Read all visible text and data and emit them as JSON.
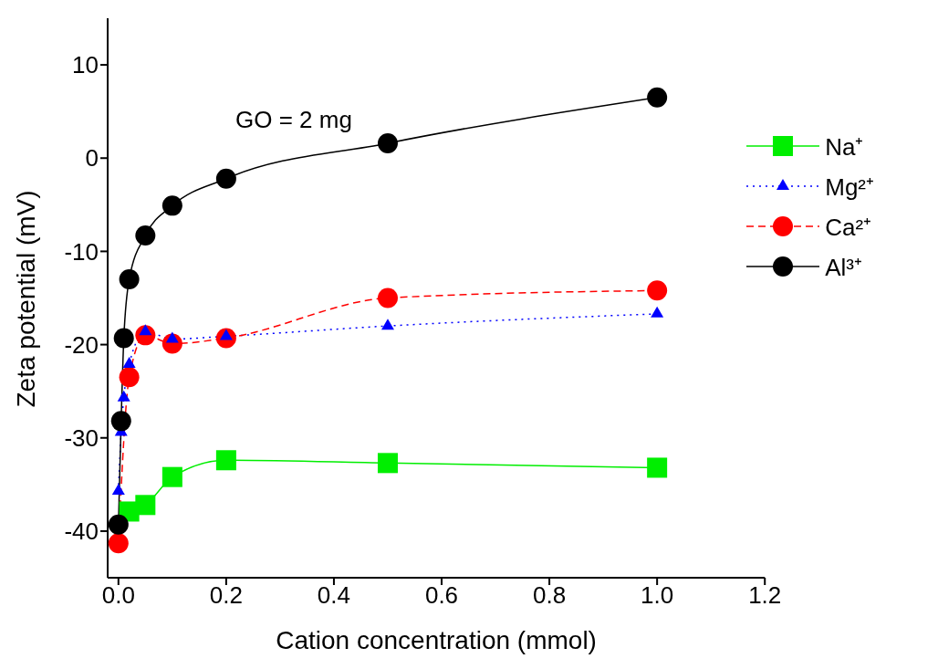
{
  "chart_data": {
    "type": "line",
    "xlabel": "Cation concentration (mmol)",
    "ylabel": "Zeta potential (mV)",
    "annotations": [
      "GO = 2 mg"
    ],
    "x": [
      0,
      0.005,
      0.01,
      0.02,
      0.05,
      0.1,
      0.2,
      0.5,
      1.0
    ],
    "series": [
      {
        "name": "Na⁺",
        "color": "#00ee00",
        "marker": "square",
        "line_style": "solid",
        "x": [
          0.02,
          0.05,
          0.1,
          0.2,
          0.5,
          1.0
        ],
        "values": [
          -37.9,
          -37.2,
          -34.2,
          -32.4,
          -32.7,
          -33.2
        ]
      },
      {
        "name": "Mg²⁺",
        "color": "#0000ff",
        "marker": "triangle",
        "line_style": "dotted",
        "values": [
          -35.7,
          -29.4,
          -25.7,
          -22.1,
          -18.6,
          -19.4,
          -19.1,
          -18.0,
          -16.7
        ]
      },
      {
        "name": "Ca²⁺",
        "color": "#ff0000",
        "marker": "circle",
        "line_style": "dashed",
        "x": [
          0,
          0.02,
          0.05,
          0.1,
          0.2,
          0.5,
          1.0
        ],
        "values": [
          -41.3,
          -23.5,
          -19.0,
          -19.9,
          -19.3,
          -15.0,
          -14.2
        ]
      },
      {
        "name": "Al³⁺",
        "color": "#000000",
        "marker": "circle",
        "line_style": "solid",
        "values": [
          -39.3,
          -28.2,
          -19.3,
          -13.0,
          -8.3,
          -5.1,
          -2.2,
          1.6,
          6.5
        ]
      }
    ],
    "xlim": [
      -0.02,
      1.2
    ],
    "xticks": [
      {
        "value": 0,
        "label": "0.0"
      },
      {
        "value": 0.2,
        "label": "0.2"
      },
      {
        "value": 0.4,
        "label": "0.4"
      },
      {
        "value": 0.6,
        "label": "0.6"
      },
      {
        "value": 0.8,
        "label": "0.8"
      },
      {
        "value": 1.0,
        "label": "1.0"
      },
      {
        "value": 1.2,
        "label": "1.2"
      }
    ],
    "ylim": [
      -45,
      15
    ],
    "yticks": [
      -40,
      -30,
      -20,
      -10,
      0,
      10
    ],
    "grid": false,
    "legend": "top right"
  }
}
